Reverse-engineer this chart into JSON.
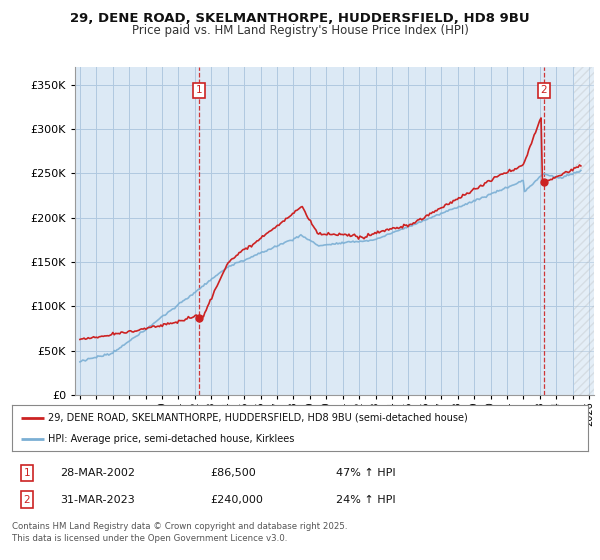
{
  "title1": "29, DENE ROAD, SKELMANTHORPE, HUDDERSFIELD, HD8 9BU",
  "title2": "Price paid vs. HM Land Registry's House Price Index (HPI)",
  "legend_line1": "29, DENE ROAD, SKELMANTHORPE, HUDDERSFIELD, HD8 9BU (semi-detached house)",
  "legend_line2": "HPI: Average price, semi-detached house, Kirklees",
  "footer": "Contains HM Land Registry data © Crown copyright and database right 2025.\nThis data is licensed under the Open Government Licence v3.0.",
  "sale1_label": "1",
  "sale1_date": "28-MAR-2002",
  "sale1_price": "£86,500",
  "sale1_hpi": "47% ↑ HPI",
  "sale2_label": "2",
  "sale2_date": "31-MAR-2023",
  "sale2_price": "£240,000",
  "sale2_hpi": "24% ↑ HPI",
  "sale1_x": 2002.23,
  "sale1_y": 86500,
  "sale2_x": 2023.25,
  "sale2_y": 240000,
  "vline1_x": 2002.23,
  "vline2_x": 2023.25,
  "hpi_color": "#7bafd4",
  "price_color": "#cc2222",
  "vline_color": "#cc2222",
  "bg_color": "#ffffff",
  "plot_bg_color": "#dce9f5",
  "grid_color": "#b0c8e0",
  "ylim": [
    0,
    370000
  ],
  "xlim": [
    1994.7,
    2026.3
  ]
}
